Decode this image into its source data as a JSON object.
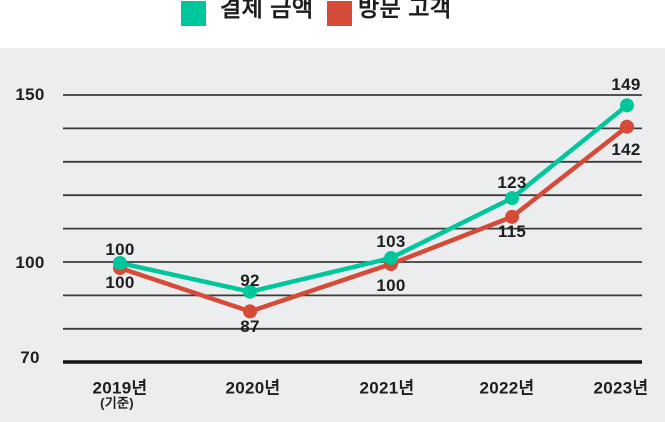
{
  "legend": {
    "items": [
      {
        "label": "결제 금액",
        "color": "#00C79B"
      },
      {
        "label": "방문 고객",
        "color": "#D64A38"
      }
    ]
  },
  "chart_data": {
    "type": "line",
    "x": [
      "2019년",
      "2020년",
      "2021년",
      "2022년",
      "2023년"
    ],
    "x_note": "(기준)",
    "series": [
      {
        "name": "결제 금액",
        "color": "#00C79B",
        "values": [
          100,
          92,
          103,
          123,
          149
        ]
      },
      {
        "name": "방문 고객",
        "color": "#D64A38",
        "values": [
          100,
          87,
          100,
          115,
          142
        ]
      }
    ],
    "y_ticks": [
      150,
      100,
      70
    ],
    "ylim": [
      70,
      155
    ],
    "gridline_values": [
      150,
      140,
      130,
      120,
      110,
      100,
      90,
      80
    ],
    "baseline_value": 70,
    "grid": true,
    "legend_position": "top"
  },
  "colors": {
    "header_background": "#FFFFFF",
    "chart_background": "#ECEDEE",
    "gridline": "#3C3C3C",
    "axis": "#141414",
    "text": "#1E1E1E"
  }
}
